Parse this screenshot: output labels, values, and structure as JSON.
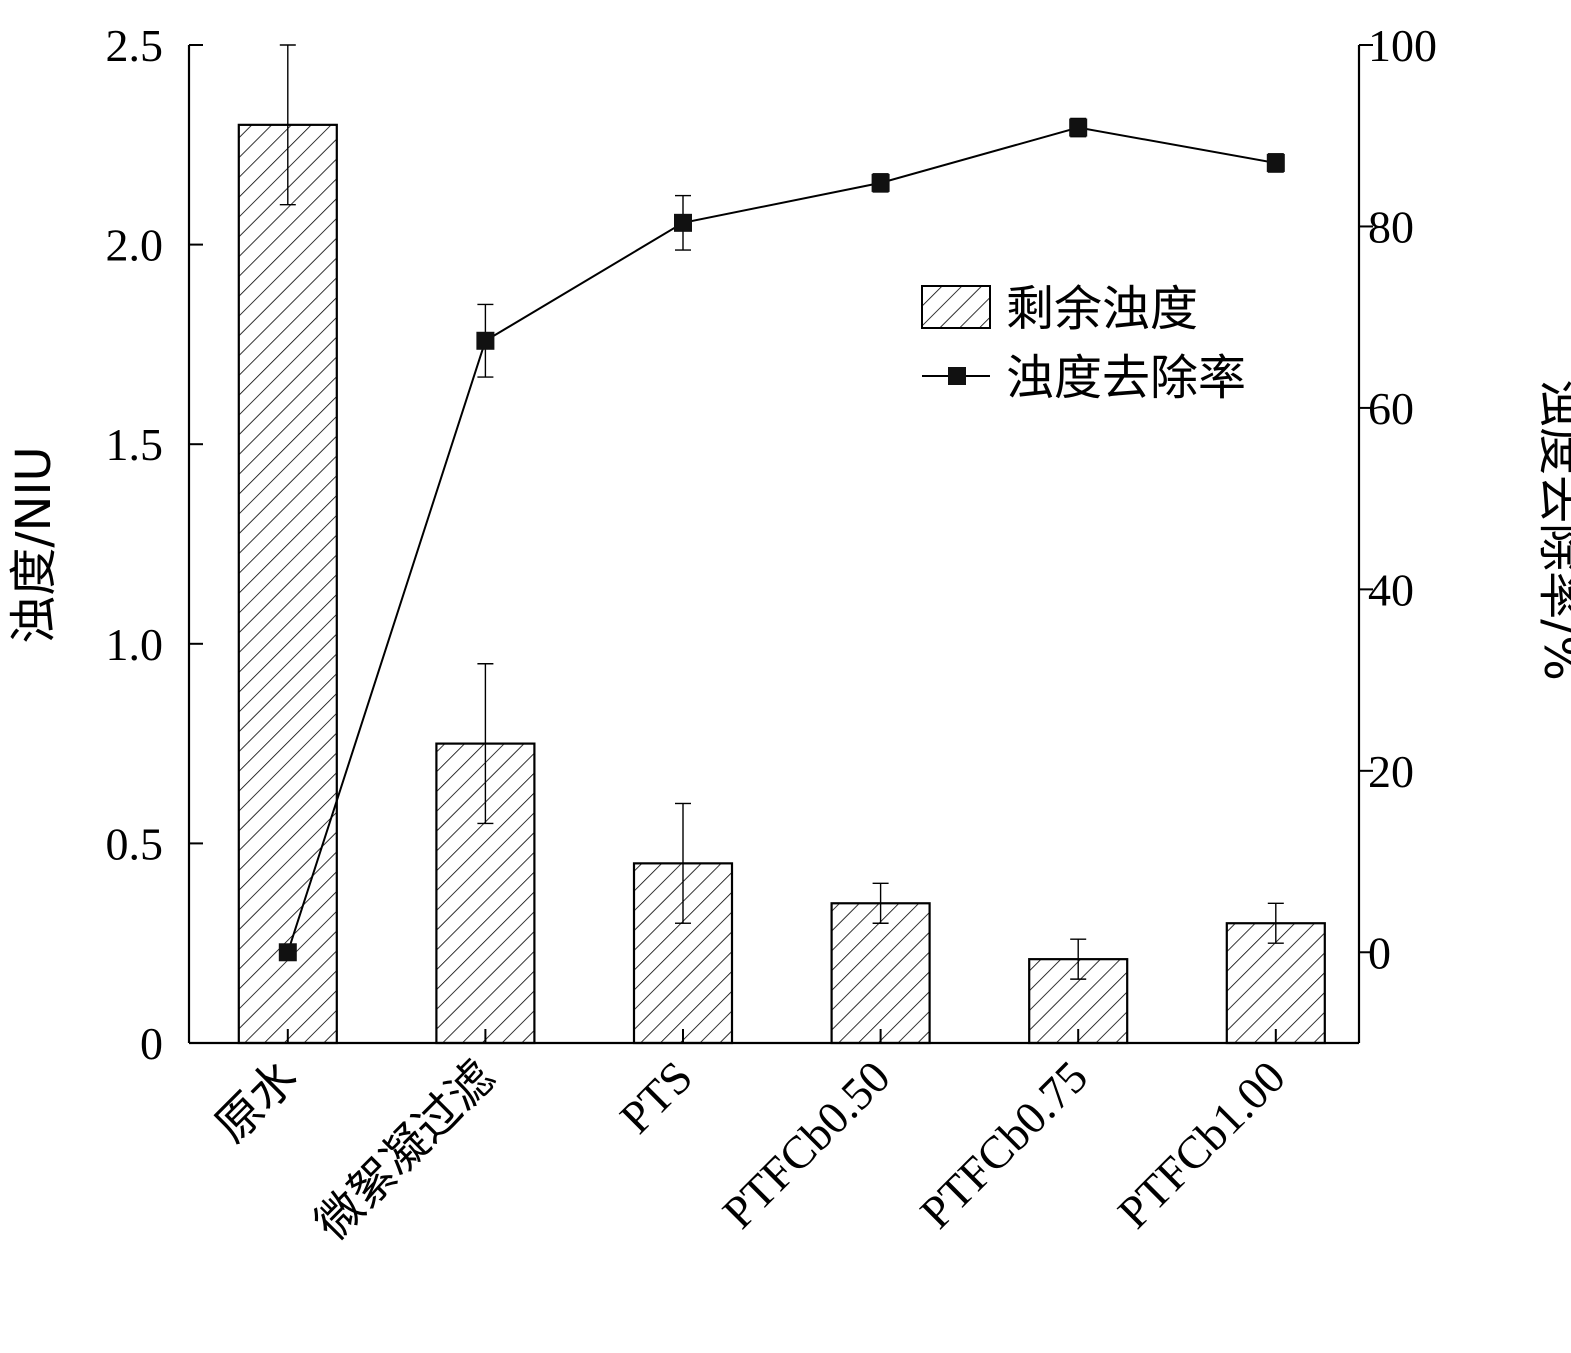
{
  "chart_data": {
    "type": "bar",
    "categories": [
      "原水",
      "微絮凝过滤",
      "PTS",
      "PTFCb0.50",
      "PTFCb0.75",
      "PTFCb1.00"
    ],
    "series": [
      {
        "name": "剩余浊度",
        "kind": "bar",
        "axis": "left",
        "values": [
          2.3,
          0.75,
          0.45,
          0.35,
          0.21,
          0.3
        ],
        "error": [
          0.2,
          0.2,
          0.15,
          0.05,
          0.05,
          0.05
        ]
      },
      {
        "name": "浊度去除率",
        "kind": "line",
        "axis": "right",
        "values": [
          0,
          67.4,
          80.4,
          84.8,
          90.9,
          87.0
        ],
        "error": [
          0,
          4.0,
          3.0,
          1.0,
          1.0,
          1.0
        ]
      }
    ],
    "ylabel": "浊度/NIU",
    "ylim": [
      0,
      2.5
    ],
    "yticks": [
      "0",
      "0.5",
      "1.0",
      "1.5",
      "2.0",
      "2.5"
    ],
    "y2label": "浊度去除率/%",
    "y2lim": [
      -10,
      100
    ],
    "y2ticks": [
      "0",
      "20",
      "40",
      "60",
      "80",
      "100"
    ],
    "legend_position": "top-right",
    "grid": false
  }
}
